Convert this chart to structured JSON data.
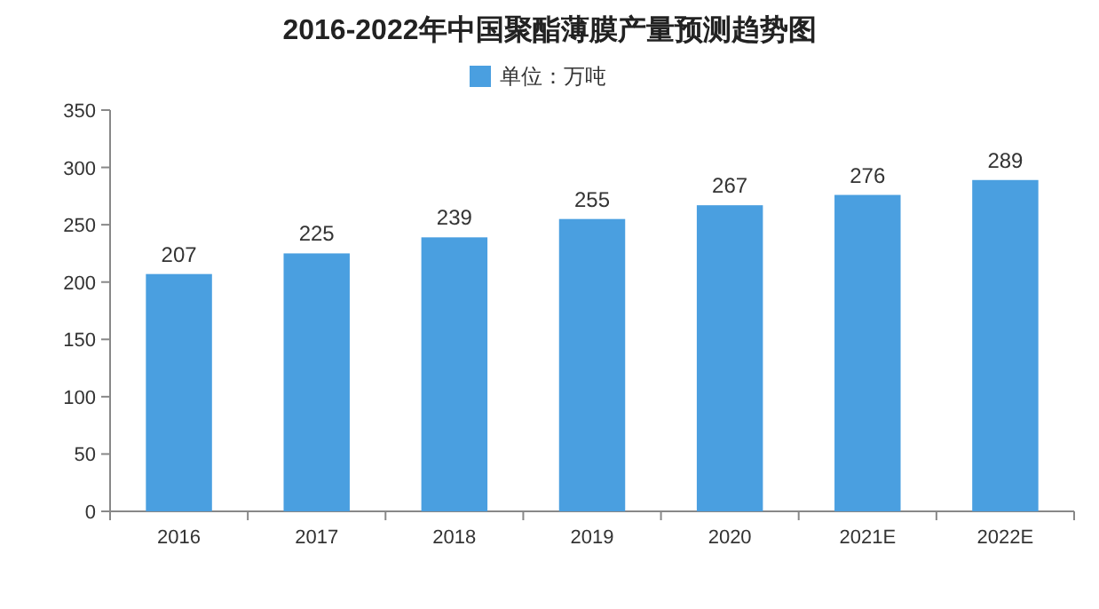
{
  "chart_data": {
    "type": "bar",
    "title": "2016-2022年中国聚酯薄膜产量预测趋势图",
    "categories": [
      "2016",
      "2017",
      "2018",
      "2019",
      "2020",
      "2021E",
      "2022E"
    ],
    "series": [
      {
        "name": "单位：万吨",
        "color": "#4a9fe0",
        "values": [
          207,
          225,
          239,
          255,
          267,
          276,
          289
        ]
      }
    ],
    "ylim": [
      0,
      350
    ],
    "yticks": [
      0,
      50,
      100,
      150,
      200,
      250,
      300,
      350
    ],
    "data_labels": true,
    "legend": "top",
    "grid": false
  }
}
